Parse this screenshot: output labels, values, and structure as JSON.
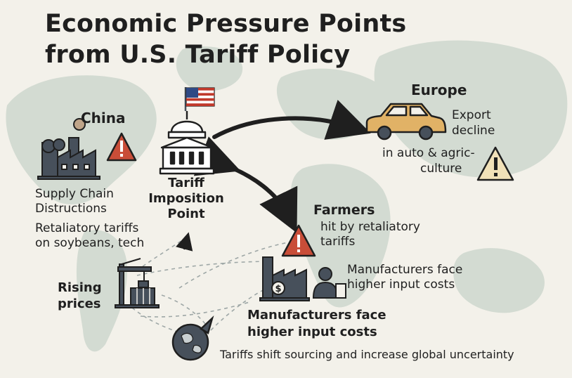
{
  "title": {
    "line1": "Economic Pressure Points",
    "line2": "from U.S. Tariff Policy"
  },
  "center_node": {
    "label_lines": [
      "Tariff",
      "Imposition",
      "Point"
    ],
    "icons": [
      "capitol-building-icon",
      "us-flag-icon"
    ]
  },
  "china": {
    "label": "China",
    "supply_lines": [
      "Supply Chain",
      "Distructions"
    ],
    "retaliation_lines": [
      "Retaliatory tariffs",
      "on soybeans, tech"
    ],
    "icons": [
      "factory-icon",
      "warning-icon"
    ]
  },
  "europe": {
    "label": "Europe",
    "export_lines": [
      "Export",
      "decline"
    ],
    "sector_lines": [
      "in auto & agric-",
      "culture"
    ],
    "icons": [
      "car-icon",
      "warning-icon"
    ]
  },
  "farmers": {
    "label": "Farmers",
    "detail_lines": [
      "hit by retaliatory",
      "tariffs"
    ],
    "icons": [
      "warning-icon"
    ]
  },
  "manufacturers": {
    "side_lines": [
      "Manufacturers face",
      "higher input costs"
    ],
    "main_lines": [
      "Manufacturers face",
      "higher input costs"
    ],
    "icons": [
      "factory-dollar-icon",
      "worker-icon"
    ]
  },
  "prices": {
    "label_lines": [
      "Rising",
      "prices"
    ],
    "icons": [
      "shipping-crane-icon"
    ]
  },
  "global": {
    "caption": "Tariffs shift sourcing and increase global uncertainty",
    "icons": [
      "globe-icon"
    ]
  },
  "colors": {
    "background": "#f3f1ea",
    "map": "#d3dbd2",
    "ink": "#1f1f1f",
    "slate": "#47505b",
    "warning_fill": "#c94d38",
    "warning_fill_light": "#f1e1b8",
    "car": "#e1b266",
    "flag_red": "#c0392b",
    "flag_blue": "#2f4a85"
  }
}
